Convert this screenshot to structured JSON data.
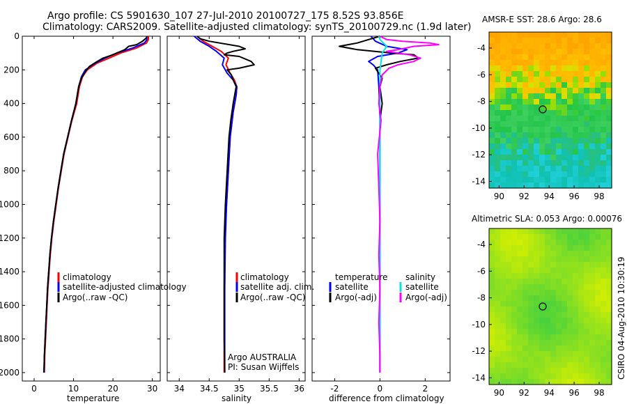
{
  "header": {
    "title_line1": "Argo profile: CS 5901630_107 27-Jul-2010 20100727_175 8.52S 93.856E",
    "title_line2": "Climatology: CARS2009. Satellite-adjusted climatology: synTS_20100729.nc (1.9d later)"
  },
  "colors": {
    "climatology": "#ff0000",
    "satellite": "#0000ff",
    "argo": "#000000",
    "sal_satellite": "#00e5e5",
    "sal_argo": "#ff00ff"
  },
  "chart_data": [
    {
      "type": "line",
      "panel": "temperature",
      "xlabel": "temperature",
      "xlim": [
        -3,
        32
      ],
      "xticks": [
        0,
        10,
        20,
        30
      ],
      "ylim": [
        0,
        2050
      ],
      "yticks": [
        0,
        200,
        400,
        600,
        800,
        1000,
        1200,
        1400,
        1600,
        1800,
        2000
      ],
      "y_reversed": true,
      "legend": [
        "climatology",
        "satellite-adjusted climatology",
        "Argo(..raw -QC)"
      ],
      "series": [
        {
          "name": "climatology",
          "color": "#ff0000",
          "points": [
            [
              29,
              0
            ],
            [
              29,
              20
            ],
            [
              28.5,
              40
            ],
            [
              26,
              70
            ],
            [
              22,
              100
            ],
            [
              19,
              130
            ],
            [
              16,
              160
            ],
            [
              13.5,
              200
            ],
            [
              12.3,
              240
            ],
            [
              11.5,
              300
            ],
            [
              10.8,
              400
            ],
            [
              9.6,
              500
            ],
            [
              8.6,
              600
            ],
            [
              7.6,
              700
            ],
            [
              6.9,
              800
            ],
            [
              6.2,
              900
            ],
            [
              5.6,
              1000
            ],
            [
              5.0,
              1100
            ],
            [
              4.5,
              1200
            ],
            [
              4.1,
              1300
            ],
            [
              3.8,
              1400
            ],
            [
              3.5,
              1500
            ],
            [
              3.3,
              1600
            ],
            [
              3.1,
              1700
            ],
            [
              2.9,
              1800
            ],
            [
              2.7,
              1900
            ],
            [
              2.6,
              2000
            ]
          ]
        },
        {
          "name": "satellite-adjusted climatology",
          "color": "#0000ff",
          "points": [
            [
              28.6,
              0
            ],
            [
              28.6,
              20
            ],
            [
              28,
              40
            ],
            [
              25,
              70
            ],
            [
              21,
              100
            ],
            [
              18,
              130
            ],
            [
              15.5,
              160
            ],
            [
              13,
              200
            ],
            [
              12,
              240
            ],
            [
              11.3,
              300
            ],
            [
              10.6,
              400
            ],
            [
              9.5,
              500
            ],
            [
              8.5,
              600
            ],
            [
              7.5,
              700
            ],
            [
              6.8,
              800
            ],
            [
              6.1,
              900
            ],
            [
              5.5,
              1000
            ],
            [
              4.9,
              1100
            ],
            [
              4.4,
              1200
            ],
            [
              4.0,
              1300
            ],
            [
              3.7,
              1400
            ],
            [
              3.4,
              1500
            ],
            [
              3.2,
              1600
            ],
            [
              3.0,
              1700
            ],
            [
              2.8,
              1800
            ],
            [
              2.6,
              1900
            ],
            [
              2.5,
              2000
            ]
          ]
        },
        {
          "name": "Argo(..raw -QC)",
          "color": "#000000",
          "points": [
            [
              28.6,
              0
            ],
            [
              28.5,
              10
            ],
            [
              27.5,
              30
            ],
            [
              26,
              50
            ],
            [
              24,
              60
            ],
            [
              23,
              80
            ],
            [
              21,
              100
            ],
            [
              20,
              110
            ],
            [
              17.5,
              130
            ],
            [
              16,
              150
            ],
            [
              14,
              180
            ],
            [
              13,
              210
            ],
            [
              12,
              250
            ],
            [
              11.3,
              300
            ],
            [
              10.6,
              400
            ],
            [
              9.5,
              500
            ],
            [
              8.5,
              600
            ],
            [
              7.5,
              700
            ],
            [
              6.8,
              800
            ],
            [
              6.1,
              900
            ],
            [
              5.5,
              1000
            ],
            [
              4.9,
              1100
            ],
            [
              4.4,
              1200
            ],
            [
              4.0,
              1300
            ],
            [
              3.7,
              1400
            ],
            [
              3.4,
              1500
            ],
            [
              3.2,
              1600
            ],
            [
              3.0,
              1700
            ],
            [
              2.8,
              1800
            ],
            [
              2.6,
              1900
            ],
            [
              2.5,
              2000
            ]
          ]
        }
      ]
    },
    {
      "type": "line",
      "panel": "salinity",
      "xlabel": "salinity",
      "xlim": [
        33.8,
        36.1
      ],
      "xticks": [
        34,
        34.5,
        35,
        35.5,
        36
      ],
      "ylim": [
        0,
        2050
      ],
      "y_reversed": true,
      "legend": [
        "climatology",
        "satellite adj. clim.",
        "Argo(..raw -QC)"
      ],
      "annotation_line1": "Argo AUSTRALIA",
      "annotation_line2": "PI: Susan Wijffels",
      "series": [
        {
          "name": "climatology",
          "color": "#ff0000",
          "points": [
            [
              34.3,
              0
            ],
            [
              34.4,
              30
            ],
            [
              34.55,
              60
            ],
            [
              34.7,
              90
            ],
            [
              34.82,
              130
            ],
            [
              34.78,
              170
            ],
            [
              34.85,
              220
            ],
            [
              34.92,
              260
            ],
            [
              34.96,
              300
            ],
            [
              34.95,
              350
            ],
            [
              34.9,
              450
            ],
            [
              34.85,
              600
            ],
            [
              34.82,
              800
            ],
            [
              34.79,
              1000
            ],
            [
              34.76,
              1200
            ],
            [
              34.75,
              1500
            ],
            [
              34.75,
              1800
            ],
            [
              34.75,
              2000
            ]
          ]
        },
        {
          "name": "satellite adj. clim.",
          "color": "#0000ff",
          "points": [
            [
              34.25,
              0
            ],
            [
              34.35,
              30
            ],
            [
              34.5,
              60
            ],
            [
              34.62,
              90
            ],
            [
              34.75,
              130
            ],
            [
              34.72,
              170
            ],
            [
              34.8,
              220
            ],
            [
              34.9,
              260
            ],
            [
              34.96,
              300
            ],
            [
              34.95,
              350
            ],
            [
              34.9,
              450
            ],
            [
              34.85,
              600
            ],
            [
              34.82,
              800
            ],
            [
              34.79,
              1000
            ],
            [
              34.77,
              1200
            ],
            [
              34.76,
              1500
            ],
            [
              34.76,
              1800
            ],
            [
              34.76,
              2000
            ]
          ]
        },
        {
          "name": "Argo(..raw -QC)",
          "color": "#000000",
          "points": [
            [
              34.3,
              0
            ],
            [
              34.35,
              15
            ],
            [
              34.5,
              30
            ],
            [
              35.0,
              60
            ],
            [
              35.1,
              75
            ],
            [
              34.9,
              90
            ],
            [
              34.8,
              100
            ],
            [
              34.75,
              110
            ],
            [
              35.0,
              120
            ],
            [
              35.2,
              150
            ],
            [
              35.25,
              170
            ],
            [
              35.0,
              190
            ],
            [
              34.8,
              200
            ],
            [
              34.87,
              230
            ],
            [
              34.9,
              260
            ],
            [
              34.95,
              300
            ],
            [
              34.9,
              400
            ],
            [
              34.86,
              500
            ],
            [
              34.83,
              600
            ],
            [
              34.8,
              800
            ],
            [
              34.77,
              1000
            ],
            [
              34.75,
              1200
            ],
            [
              34.75,
              1500
            ],
            [
              34.75,
              1800
            ],
            [
              34.76,
              2000
            ]
          ]
        }
      ]
    },
    {
      "type": "line",
      "panel": "difference",
      "xlabel": "difference from climatology",
      "xlim": [
        -3,
        3.1
      ],
      "xticks": [
        -2,
        0,
        2
      ],
      "ylim": [
        0,
        2050
      ],
      "y_reversed": true,
      "legend_left_title": "temperature",
      "legend_right_title": "salinity",
      "legend_left": [
        "satellite",
        "Argo(-adj)"
      ],
      "legend_right": [
        "satellite",
        "Argo(-adj)"
      ],
      "series": [
        {
          "name": "satellite",
          "group": "temperature",
          "color": "#0000ff",
          "points": [
            [
              -0.4,
              0
            ],
            [
              -0.2,
              30
            ],
            [
              0.3,
              60
            ],
            [
              1.2,
              80
            ],
            [
              0.8,
              100
            ],
            [
              -0.1,
              120
            ],
            [
              -0.5,
              150
            ],
            [
              -0.3,
              170
            ],
            [
              -0.1,
              200
            ],
            [
              -0.05,
              300
            ],
            [
              0,
              500
            ],
            [
              0,
              1000
            ],
            [
              0,
              2000
            ]
          ]
        },
        {
          "name": "Argo(-adj)",
          "group": "temperature",
          "color": "#000000",
          "points": [
            [
              0,
              0
            ],
            [
              -0.5,
              20
            ],
            [
              -1.0,
              40
            ],
            [
              -1.8,
              60
            ],
            [
              -1.0,
              80
            ],
            [
              0.5,
              100
            ],
            [
              1.5,
              110
            ],
            [
              1.7,
              130
            ],
            [
              0.9,
              150
            ],
            [
              0.3,
              170
            ],
            [
              -0.2,
              190
            ],
            [
              0.1,
              250
            ],
            [
              0.0,
              300
            ],
            [
              0.1,
              400
            ],
            [
              0,
              500
            ],
            [
              0,
              800
            ],
            [
              0,
              1000
            ],
            [
              0,
              1500
            ],
            [
              0,
              2000
            ]
          ]
        },
        {
          "name": "satellite",
          "group": "salinity",
          "color": "#00e5e5",
          "points": [
            [
              -0.05,
              0
            ],
            [
              0,
              20
            ],
            [
              0.15,
              40
            ],
            [
              0.3,
              60
            ],
            [
              0.2,
              80
            ],
            [
              0.1,
              100
            ],
            [
              0.05,
              150
            ],
            [
              0,
              200
            ],
            [
              0,
              500
            ],
            [
              0,
              1000
            ],
            [
              0,
              2000
            ]
          ]
        },
        {
          "name": "Argo(-adj)",
          "group": "salinity",
          "color": "#ff00ff",
          "points": [
            [
              0,
              0
            ],
            [
              0.3,
              20
            ],
            [
              1.0,
              30
            ],
            [
              2.2,
              40
            ],
            [
              2.6,
              50
            ],
            [
              1.5,
              60
            ],
            [
              0.8,
              80
            ],
            [
              0.3,
              90
            ],
            [
              1.3,
              110
            ],
            [
              1.8,
              130
            ],
            [
              1.5,
              150
            ],
            [
              0.8,
              170
            ],
            [
              0.4,
              190
            ],
            [
              0.1,
              230
            ],
            [
              0,
              300
            ],
            [
              -0.05,
              400
            ],
            [
              0.05,
              500
            ],
            [
              -0.1,
              700
            ],
            [
              -0.05,
              900
            ],
            [
              0,
              1100
            ],
            [
              -0.05,
              1300
            ],
            [
              0,
              1500
            ],
            [
              -0.05,
              1700
            ],
            [
              0,
              1900
            ],
            [
              0,
              2000
            ]
          ]
        }
      ]
    },
    {
      "type": "heatmap",
      "panel": "sst_map",
      "title": "AMSR-E SST: 28.6  Argo: 28.6",
      "xlim": [
        89.2,
        99
      ],
      "xticks": [
        90,
        92,
        94,
        96,
        98
      ],
      "ylim": [
        -14.5,
        -2.8
      ],
      "yticks": [
        -4,
        -6,
        -8,
        -10,
        -12,
        -14
      ],
      "marker": {
        "lon": 93.856,
        "lat": -8.52
      }
    },
    {
      "type": "heatmap",
      "panel": "sla_map",
      "title": "Altimetric SLA: 0.053  Argo: 0.00076",
      "xlim": [
        89.2,
        99
      ],
      "xticks": [
        90,
        92,
        94,
        96,
        98
      ],
      "ylim": [
        -14.5,
        -2.8
      ],
      "yticks": [
        -4,
        -6,
        -8,
        -10,
        -12,
        -14
      ],
      "marker": {
        "lon": 93.856,
        "lat": -8.52
      }
    }
  ],
  "footer": {
    "stamp": "CSIRO 04-Aug-2010 10:30:19"
  }
}
